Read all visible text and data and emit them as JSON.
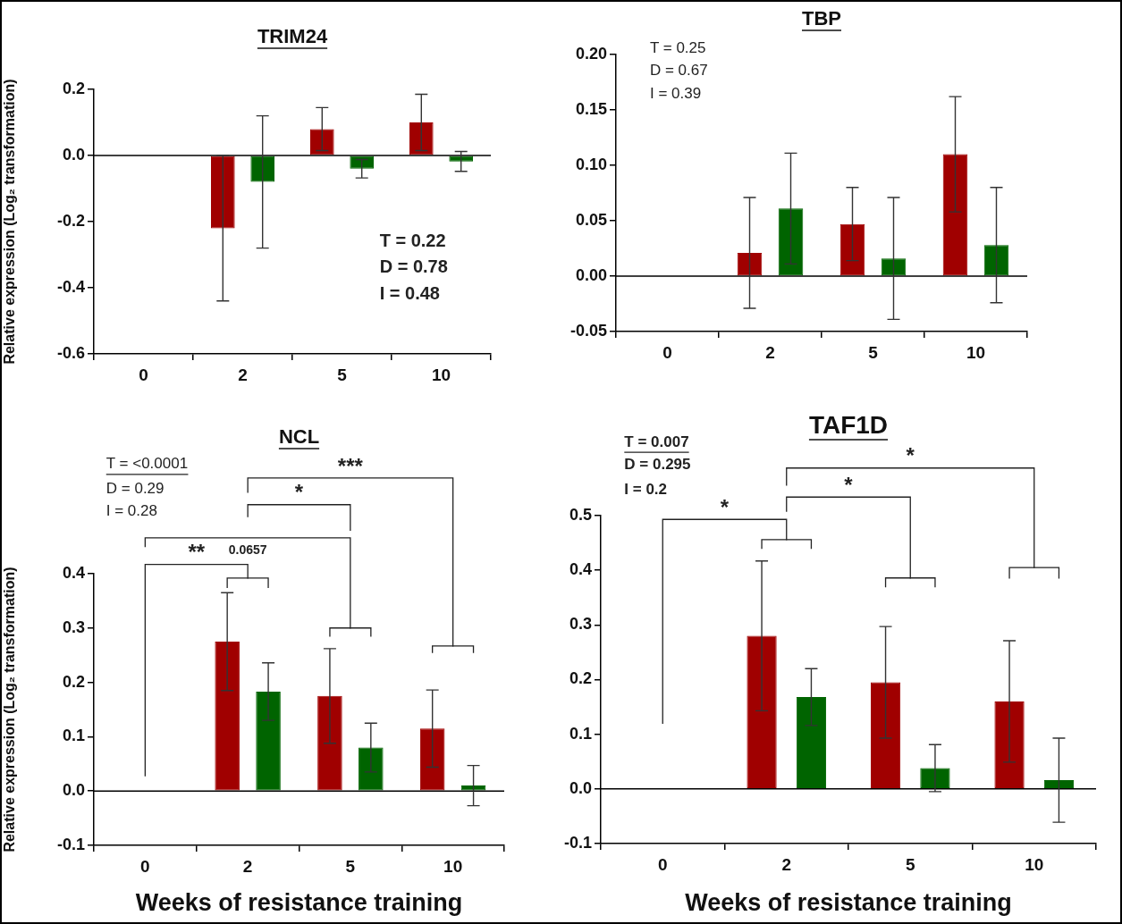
{
  "chart_data": [
    {
      "type": "bar",
      "title": "TRIM24",
      "ylabel": "Relative expression (Log₂ transformation)",
      "categories": [
        "0",
        "2",
        "5",
        "10"
      ],
      "series": [
        {
          "color": "#a00000",
          "values": [
            null,
            -0.22,
            0.08,
            0.1
          ],
          "errors": [
            null,
            0.22,
            0.065,
            0.085
          ]
        },
        {
          "color": "#006400",
          "values": [
            null,
            -0.08,
            -0.04,
            -0.018
          ],
          "errors": [
            null,
            0.2,
            0.028,
            0.03
          ]
        }
      ],
      "ylim": [
        -0.6,
        0.2
      ],
      "yticks": [
        -0.6,
        -0.4,
        -0.2,
        {
          "value": 0,
          "label": "0.0"
        },
        0.2
      ],
      "annotations": [
        "T = 0.22",
        "D = 0.78",
        "I = 0.48"
      ]
    },
    {
      "type": "bar",
      "title": "TBP",
      "categories": [
        "0",
        "2",
        "5",
        "10"
      ],
      "series": [
        {
          "color": "#a00000",
          "values": [
            null,
            0.021,
            0.047,
            0.11
          ],
          "errors": [
            null,
            0.05,
            0.033,
            0.052
          ]
        },
        {
          "color": "#006400",
          "values": [
            null,
            0.061,
            0.016,
            0.028
          ],
          "errors": [
            null,
            0.05,
            0.055,
            0.052
          ]
        }
      ],
      "ylim": [
        -0.05,
        0.2
      ],
      "yticks": [
        -0.05,
        {
          "value": 0,
          "label": "0.00"
        },
        0.05,
        {
          "value": 0.1,
          "label": "0.10"
        },
        0.15,
        {
          "value": 0.2,
          "label": "0.20"
        }
      ],
      "annotations": [
        "T = 0.25",
        "D = 0.67",
        "I = 0.39"
      ]
    },
    {
      "type": "bar",
      "title": "NCL",
      "xlabel": "Weeks of resistance training",
      "ylabel": "Relative expression (Log₂ transformation)",
      "categories": [
        "0",
        "2",
        "5",
        "10"
      ],
      "series": [
        {
          "color": "#a00000",
          "values": [
            null,
            0.275,
            0.175,
            0.115
          ],
          "errors": [
            null,
            0.09,
            0.087,
            0.071
          ]
        },
        {
          "color": "#006400",
          "values": [
            null,
            0.183,
            0.08,
            0.01
          ],
          "errors": [
            null,
            0.053,
            0.045,
            0.037
          ]
        }
      ],
      "ylim": [
        -0.1,
        0.4
      ],
      "yticks": [
        -0.1,
        {
          "value": 0,
          "label": "0.0"
        },
        0.1,
        0.2,
        0.3,
        0.4
      ],
      "annotations": [
        "T = <0.0001",
        "D = 0.29",
        "I = 0.28",
        "***",
        "*",
        "0.0657",
        "**"
      ]
    },
    {
      "type": "bar",
      "title": "TAF1D",
      "xlabel": "Weeks of resistance training",
      "categories": [
        "0",
        "2",
        "5",
        "10"
      ],
      "series": [
        {
          "color": "#a00000",
          "values": [
            null,
            0.28,
            0.195,
            0.16
          ],
          "errors": [
            null,
            0.137,
            0.102,
            0.111
          ]
        },
        {
          "color": "#006400",
          "values": [
            null,
            0.168,
            0.038,
            0.016
          ],
          "errors": [
            null,
            0.052,
            0.043,
            0.077
          ]
        }
      ],
      "ylim": [
        -0.1,
        0.5
      ],
      "yticks": [
        -0.1,
        {
          "value": 0,
          "label": "0.0"
        },
        0.1,
        0.2,
        0.3,
        0.4,
        0.5
      ],
      "annotations": [
        "T = 0.007",
        "D = 0.295",
        "I = 0.2",
        "*",
        "*",
        "*"
      ]
    }
  ]
}
